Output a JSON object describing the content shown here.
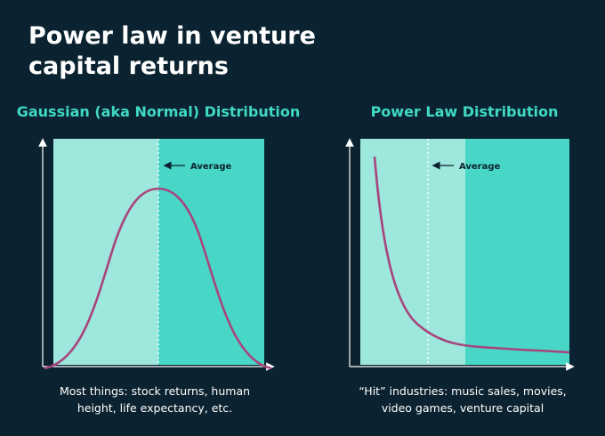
{
  "header": {
    "title_lines": [
      "Power law in venture",
      "capital returns"
    ]
  },
  "panels": [
    {
      "title": "Gaussian (aka Normal) Distribution",
      "average_label": "Average",
      "caption_lines": [
        "Most things: stock returns, human",
        "height, life expectancy, etc."
      ]
    },
    {
      "title": "Power Law Distribution",
      "average_label": "Average",
      "caption_lines": [
        "“Hit” industries: music sales, movies,",
        "video games, venture capital"
      ]
    }
  ]
}
